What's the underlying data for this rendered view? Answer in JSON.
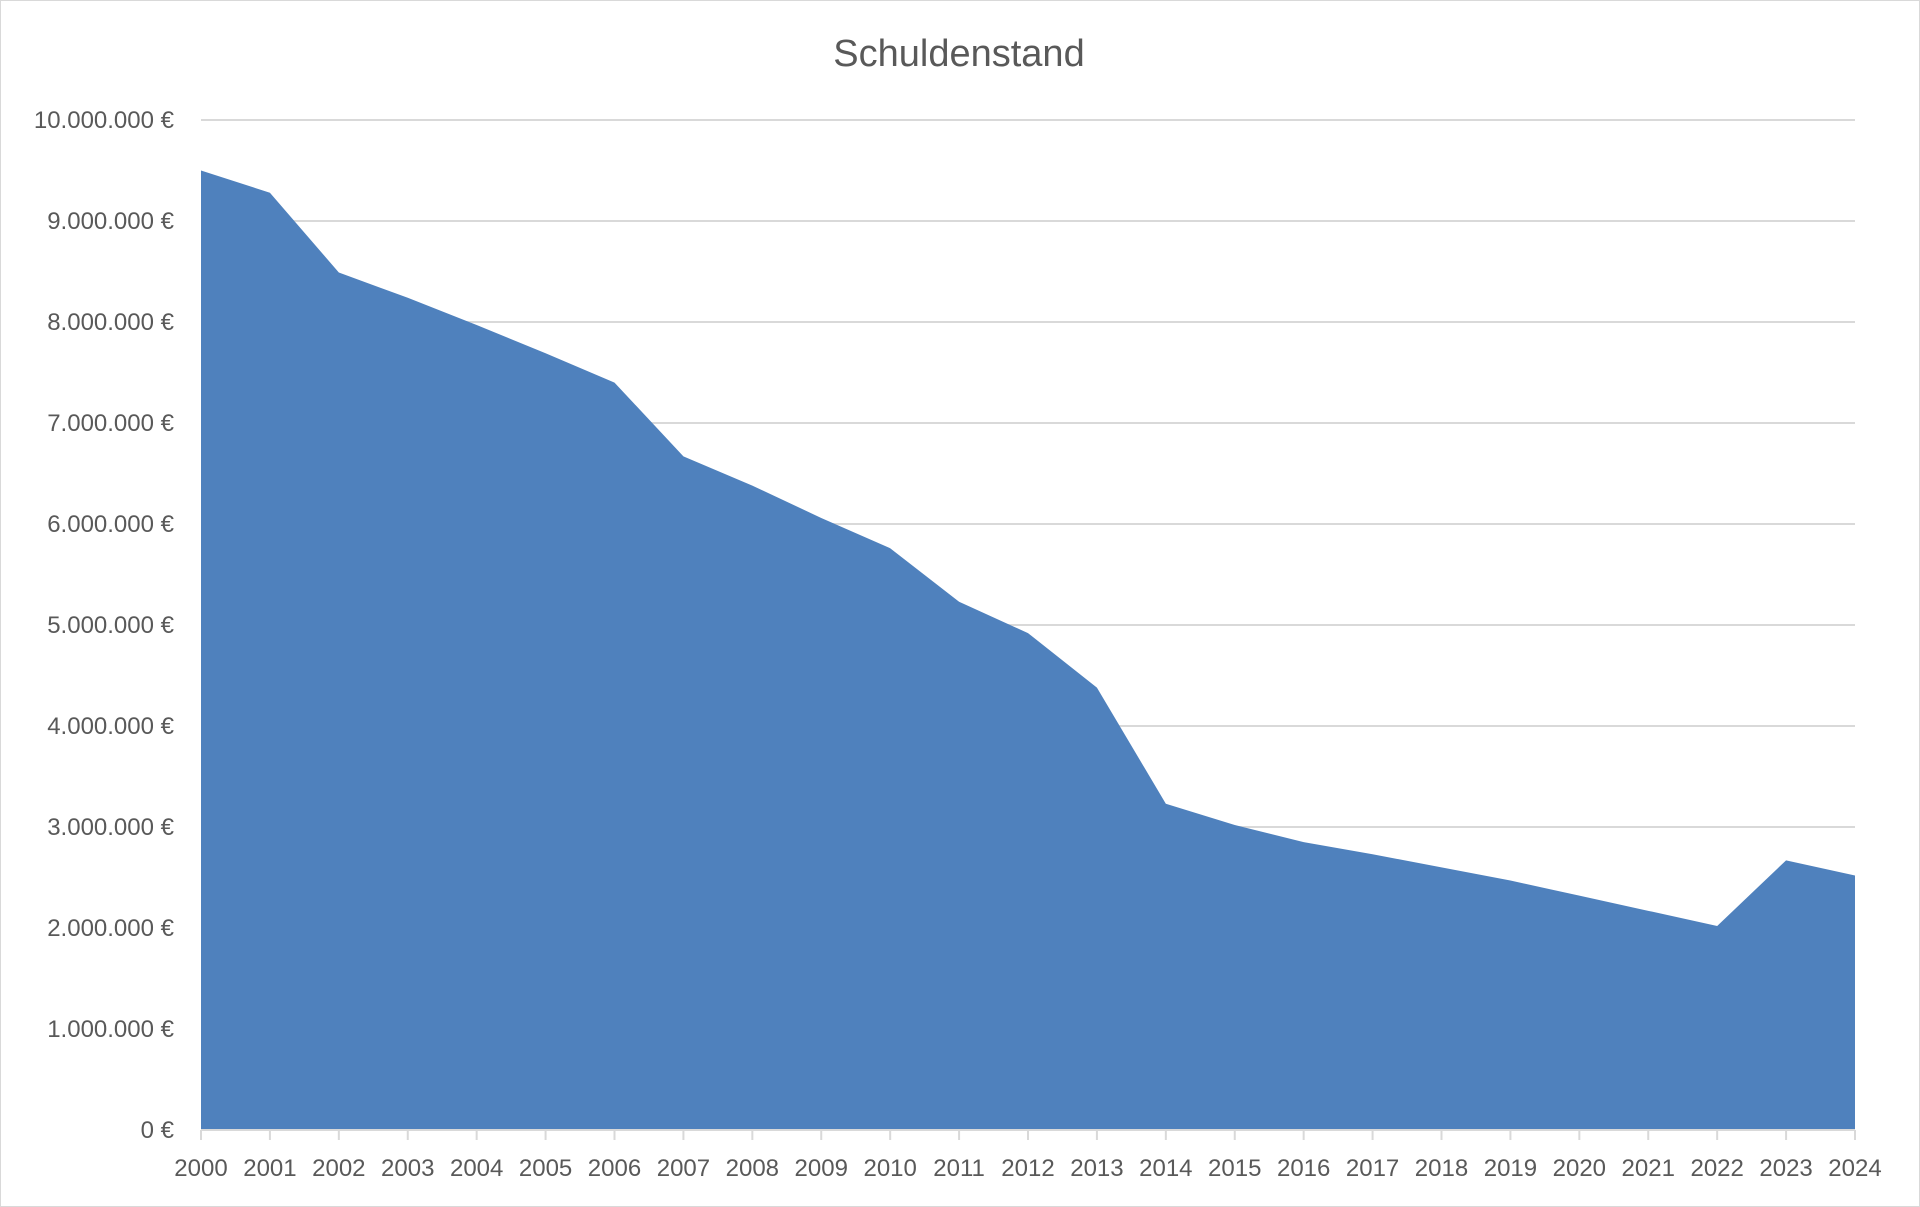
{
  "chart_data": {
    "type": "area",
    "title": "Schuldenstand",
    "xlabel": "",
    "ylabel": "",
    "x": [
      "2000",
      "2001",
      "2002",
      "2003",
      "2004",
      "2005",
      "2006",
      "2007",
      "2008",
      "2009",
      "2010",
      "2011",
      "2012",
      "2013",
      "2014",
      "2015",
      "2016",
      "2017",
      "2018",
      "2019",
      "2020",
      "2021",
      "2022",
      "2023",
      "2024"
    ],
    "series": [
      {
        "values": [
          9500000,
          9280000,
          8490000,
          8240000,
          7970000,
          7690000,
          7400000,
          6670000,
          6380000,
          6060000,
          5760000,
          5230000,
          4920000,
          4380000,
          3230000,
          3020000,
          2850000,
          2730000,
          2600000,
          2470000,
          2320000,
          2170000,
          2020000,
          2670000,
          2520000
        ],
        "color": "#4f81bd"
      }
    ],
    "ylim": [
      0,
      10000000
    ],
    "yticks": [
      0,
      1000000,
      2000000,
      3000000,
      4000000,
      5000000,
      6000000,
      7000000,
      8000000,
      9000000,
      10000000
    ],
    "ytick_labels": [
      "0 €",
      "1.000.000 €",
      "2.000.000 €",
      "3.000.000 €",
      "4.000.000 €",
      "5.000.000 €",
      "6.000.000 €",
      "7.000.000 €",
      "8.000.000 €",
      "9.000.000 €",
      "10.000.000 €"
    ],
    "grid": true,
    "legend": "none",
    "colors": {
      "fill": "#4f81bd",
      "grid": "#d9d9d9",
      "axis": "#d9d9d9",
      "text": "#595959"
    }
  }
}
